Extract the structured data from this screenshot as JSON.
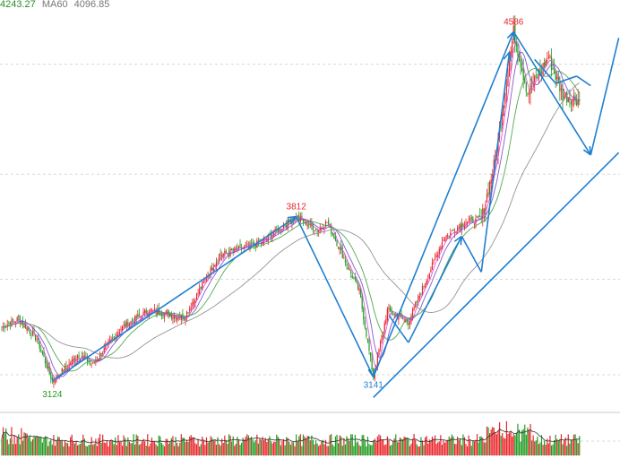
{
  "header": {
    "ma_items": [
      {
        "value": "4243.27",
        "color": "#2a8a2a"
      },
      {
        "label": "MA60",
        "value": "4096.85",
        "color": "#777777"
      }
    ]
  },
  "colors": {
    "up": "#e8262b",
    "down": "#229c22",
    "trend": "#1f7fd0",
    "ma_pink": "#d94bd9",
    "ma_purple": "#7a47c8",
    "ma_green": "#3f9e3f",
    "ma_gray": "#888888",
    "volume_line": "#333333",
    "grid": "#d8d8d8",
    "annotation_red": "#e8262b",
    "annotation_green": "#229c22"
  },
  "chart_data": {
    "type": "candlestick",
    "y_range": [
      3000,
      4700
    ],
    "grid": "dashed horizontal",
    "annotations": [
      {
        "text": "4586",
        "value": 4586,
        "position": "peak",
        "color": "red"
      },
      {
        "text": "3812",
        "value": 3812,
        "position": "local-high",
        "color": "red"
      },
      {
        "text": "3124",
        "value": 3124,
        "position": "low",
        "color": "green"
      },
      {
        "text": "3141",
        "value": 3141,
        "position": "local-low",
        "color": "blue"
      }
    ],
    "price_path": [
      {
        "i": 0,
        "price": 3350
      },
      {
        "i": 12,
        "price": 3385
      },
      {
        "i": 25,
        "price": 3300
      },
      {
        "i": 36,
        "price": 3124
      },
      {
        "i": 55,
        "price": 3235
      },
      {
        "i": 65,
        "price": 3195
      },
      {
        "i": 85,
        "price": 3345
      },
      {
        "i": 105,
        "price": 3420
      },
      {
        "i": 130,
        "price": 3390
      },
      {
        "i": 155,
        "price": 3650
      },
      {
        "i": 185,
        "price": 3705
      },
      {
        "i": 210,
        "price": 3812
      },
      {
        "i": 225,
        "price": 3755
      },
      {
        "i": 232,
        "price": 3790
      },
      {
        "i": 255,
        "price": 3500
      },
      {
        "i": 265,
        "price": 3141
      },
      {
        "i": 275,
        "price": 3420
      },
      {
        "i": 290,
        "price": 3370
      },
      {
        "i": 315,
        "price": 3720
      },
      {
        "i": 330,
        "price": 3790
      },
      {
        "i": 342,
        "price": 3800
      },
      {
        "i": 352,
        "price": 4050
      },
      {
        "i": 365,
        "price": 4586
      },
      {
        "i": 375,
        "price": 4330
      },
      {
        "i": 390,
        "price": 4480
      },
      {
        "i": 400,
        "price": 4320
      },
      {
        "i": 412,
        "price": 4300
      }
    ],
    "trend_lines": [
      {
        "from": [
          36,
          3124
        ],
        "to": [
          210,
          3812
        ]
      },
      {
        "from": [
          210,
          3812
        ],
        "to": [
          265,
          3141
        ]
      },
      {
        "from": [
          265,
          3141
        ],
        "to": [
          365,
          4586
        ]
      },
      {
        "from": [
          365,
          4586
        ],
        "to": [
          420,
          4070
        ]
      },
      {
        "from": [
          265,
          3055
        ],
        "to": [
          440,
          4080
        ]
      },
      {
        "from": [
          420,
          4070
        ],
        "to": [
          440,
          4560
        ]
      },
      {
        "from": [
          276,
          3400
        ],
        "to": [
          290,
          3285
        ]
      },
      {
        "from": [
          290,
          3285
        ],
        "to": [
          328,
          3730
        ]
      },
      {
        "from": [
          328,
          3730
        ],
        "to": [
          342,
          3580
        ]
      },
      {
        "from": [
          342,
          3580
        ],
        "to": [
          362,
          4500
        ]
      },
      {
        "from": [
          380,
          4470
        ],
        "to": [
          395,
          4370
        ]
      },
      {
        "from": [
          395,
          4370
        ],
        "to": [
          410,
          4400
        ]
      },
      {
        "from": [
          410,
          4400
        ],
        "to": [
          420,
          4360
        ]
      }
    ]
  }
}
